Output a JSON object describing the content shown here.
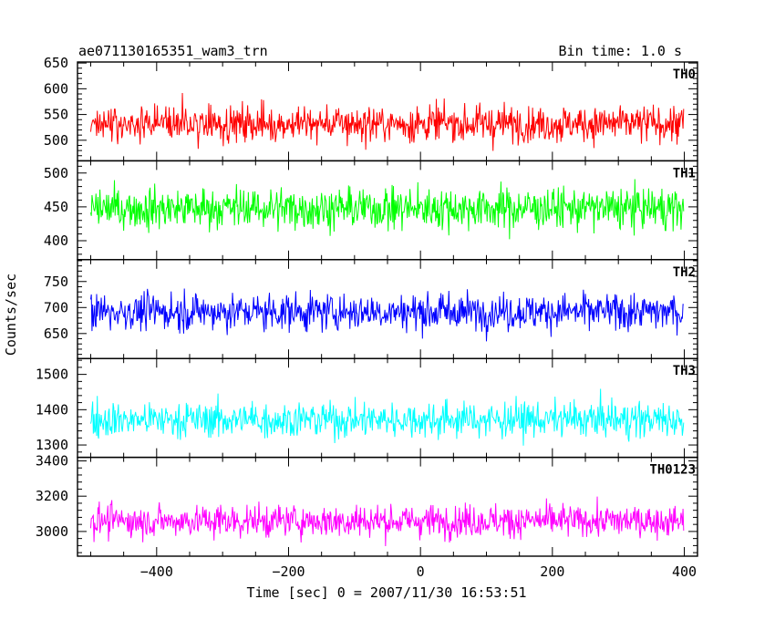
{
  "chart_data": {
    "type": "line",
    "title": "ae071130165351_wam3_trn",
    "bin_time_label": "Bin time: 1.0 s",
    "xlabel": "Time [sec] 0 = 2007/11/30 16:53:51",
    "ylabel": "Counts/sec",
    "xlim": [
      -520,
      420
    ],
    "xticks": [
      -400,
      -200,
      0,
      200,
      400
    ],
    "x_range": [
      -500,
      399
    ],
    "bin_seconds": 1,
    "series": [
      {
        "name": "TH0",
        "color": "#ff0000",
        "ylim": [
          460,
          652
        ],
        "yticks": [
          500,
          550,
          600,
          650
        ],
        "mean": 532,
        "spread": 28
      },
      {
        "name": "TH1",
        "color": "#00ff00",
        "ylim": [
          372,
          518
        ],
        "yticks": [
          400,
          450,
          500
        ],
        "mean": 448,
        "spread": 24
      },
      {
        "name": "TH2",
        "color": "#0000ff",
        "ylim": [
          602,
          792
        ],
        "yticks": [
          650,
          700,
          750
        ],
        "mean": 692,
        "spread": 28
      },
      {
        "name": "TH3",
        "color": "#00ffff",
        "ylim": [
          1265,
          1545
        ],
        "yticks": [
          1300,
          1400,
          1500
        ],
        "mean": 1372,
        "spread": 40
      },
      {
        "name": "TH0123",
        "color": "#ff00ff",
        "ylim": [
          2860,
          3420
        ],
        "yticks": [
          3000,
          3200,
          3400
        ],
        "mean": 3060,
        "spread": 72
      }
    ]
  }
}
